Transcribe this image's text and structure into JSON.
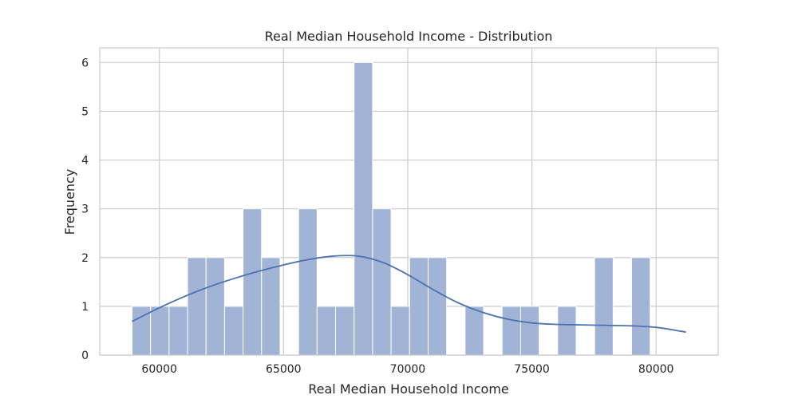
{
  "chart_data": {
    "type": "bar",
    "subtype": "histogram-with-kde",
    "title": "Real Median Household Income - Distribution",
    "xlabel": "Real Median Household Income",
    "ylabel": "Frequency",
    "xlim": [
      57600,
      82500
    ],
    "ylim": [
      0,
      6.3
    ],
    "xticks": [
      60000,
      65000,
      70000,
      75000,
      80000
    ],
    "yticks": [
      0,
      1,
      2,
      3,
      4,
      5,
      6
    ],
    "grid": true,
    "bin_start": 58900,
    "bin_width": 745,
    "counts": [
      1,
      1,
      1,
      2,
      2,
      1,
      3,
      2,
      0,
      3,
      1,
      1,
      6,
      3,
      1,
      2,
      2,
      0,
      1,
      0,
      1,
      1,
      0,
      1,
      0,
      2,
      0,
      2
    ],
    "kde": {
      "x": [
        58900,
        60000,
        61000,
        62000,
        63000,
        64000,
        65000,
        66000,
        67000,
        68000,
        69000,
        70000,
        71000,
        72000,
        73000,
        74000,
        75000,
        76000,
        77000,
        78000,
        79000,
        80000,
        81000,
        81200
      ],
      "y": [
        0.69,
        0.97,
        1.2,
        1.4,
        1.57,
        1.72,
        1.85,
        1.96,
        2.03,
        2.03,
        1.9,
        1.65,
        1.35,
        1.08,
        0.88,
        0.74,
        0.66,
        0.63,
        0.62,
        0.61,
        0.6,
        0.57,
        0.49,
        0.47
      ]
    },
    "colors": {
      "bar_fill": "#a1b4d6",
      "bar_stroke": "#ffffff",
      "kde_line": "#4c72b0",
      "grid": "#cccccc",
      "frame": "#cccccc"
    }
  }
}
